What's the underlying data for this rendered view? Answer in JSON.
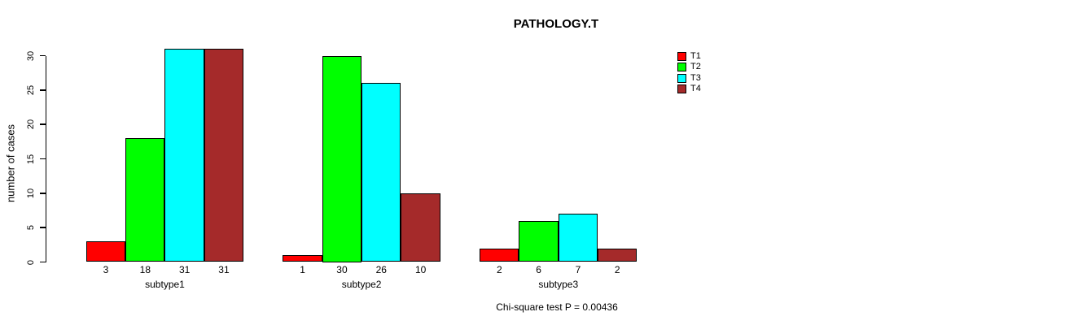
{
  "title": "PATHOLOGY.T",
  "note": "Chi-square test P = 0.00436",
  "colors": {
    "t1": "#FF0000",
    "t2": "#00FF00",
    "t3": "#00FFFF",
    "t4": "#A52A2A",
    "axis": "#000000",
    "background": "#FFFFFF"
  },
  "chart_data": {
    "type": "bar",
    "title": "PATHOLOGY.T",
    "xlabel": "",
    "ylabel": "number of cases",
    "categories": [
      "subtype1",
      "subtype2",
      "subtype3"
    ],
    "series": [
      {
        "name": "T1",
        "color": "#FF0000",
        "values": [
          3,
          1,
          2
        ]
      },
      {
        "name": "T2",
        "color": "#00FF00",
        "values": [
          18,
          30,
          6
        ]
      },
      {
        "name": "T3",
        "color": "#00FFFF",
        "values": [
          31,
          26,
          7
        ]
      },
      {
        "name": "T4",
        "color": "#A52A2A",
        "values": [
          31,
          10,
          2
        ]
      }
    ],
    "bar_value_labels": {
      "subtype1": [
        3,
        18,
        31,
        31
      ],
      "subtype2": [
        1,
        30,
        26,
        10
      ],
      "subtype3": [
        2,
        6,
        7,
        2
      ]
    },
    "yticks": [
      0,
      5,
      10,
      15,
      20,
      25,
      30
    ],
    "ylim": [
      0,
      30
    ],
    "grid": false,
    "legend_position": "right",
    "legend_entries": [
      "T1",
      "T2",
      "T3",
      "T4"
    ],
    "annotation": "Chi-square test P = 0.00436"
  }
}
